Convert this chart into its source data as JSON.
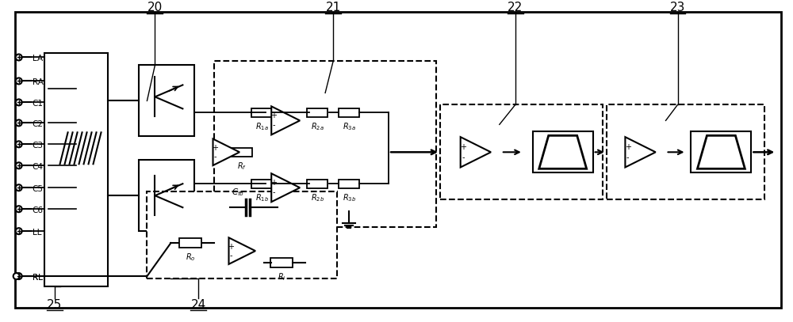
{
  "fig_width": 10.0,
  "fig_height": 4.07,
  "bg_color": "#ffffff",
  "border_color": "#000000",
  "labels_left": [
    "LA",
    "RA",
    "C1",
    "C2",
    "C3",
    "C4",
    "C5",
    "C6",
    "LL",
    "RL"
  ],
  "section_labels": [
    "20",
    "21",
    "22",
    "23",
    "24",
    "25"
  ],
  "line_color": "#000000",
  "dashed_color": "#000000"
}
